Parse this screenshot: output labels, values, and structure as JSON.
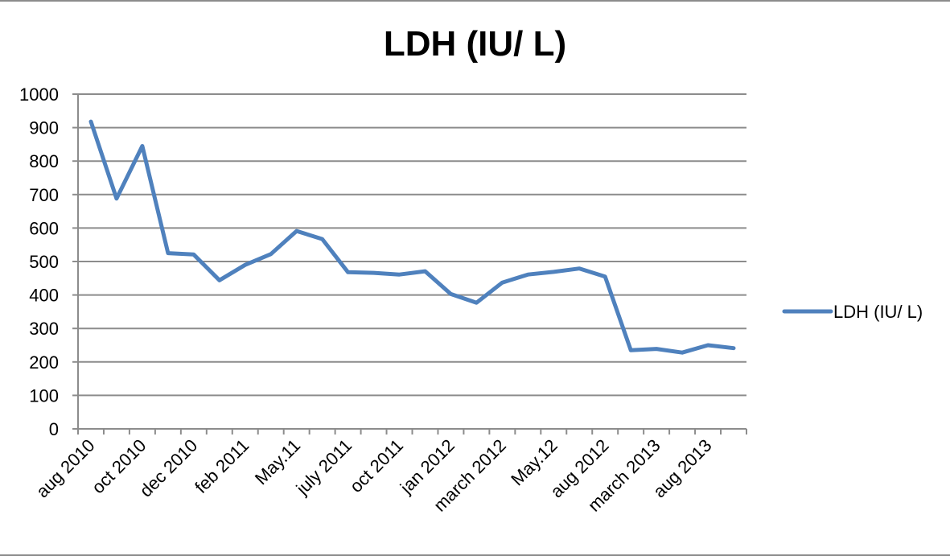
{
  "chart_data": {
    "type": "line",
    "title": "LDH (IU/ L)",
    "xlabel": "",
    "ylabel": "",
    "ylim": [
      0,
      1000
    ],
    "yticks": [
      0,
      100,
      200,
      300,
      400,
      500,
      600,
      700,
      800,
      900,
      1000
    ],
    "grid": true,
    "legend_position": "right",
    "categories": [
      "aug 2010",
      "",
      "oct 2010",
      "",
      "dec 2010",
      "",
      "feb 2011",
      "",
      "May.11",
      "",
      "july 2011",
      "",
      "oct 2011",
      "",
      "jan 2012",
      "",
      "march 2012",
      "",
      "May.12",
      "",
      "aug 2012",
      "",
      "march 2013",
      "",
      "aug 2013",
      ""
    ],
    "series": [
      {
        "name": "LDH (IU/ L)",
        "color": "#4F81BD",
        "values": [
          918,
          688,
          845,
          525,
          521,
          444,
          490,
          522,
          591,
          567,
          468,
          466,
          461,
          471,
          403,
          377,
          437,
          461,
          469,
          479,
          455,
          235,
          239,
          228,
          250,
          241
        ]
      }
    ]
  }
}
